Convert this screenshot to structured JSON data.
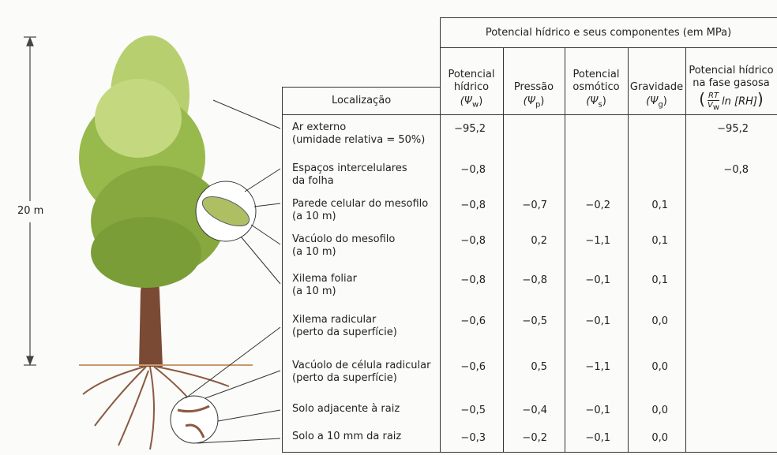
{
  "scale_label": "20 m",
  "table": {
    "group_header": "Potencial hídrico e seus componentes (em MPa)",
    "row_header": "Localização",
    "columns": [
      {
        "lines": [
          "Potencial",
          "hídrico"
        ],
        "open": "(Ψ",
        "subscript": "w",
        "close": ")"
      },
      {
        "lines": [
          "Pressão"
        ],
        "open": "(Ψ",
        "subscript": "p",
        "close": ")"
      },
      {
        "lines": [
          "Potencial",
          "osmótico"
        ],
        "open": "(Ψ",
        "subscript": "s",
        "close": ")"
      },
      {
        "lines": [
          "Gravidade"
        ],
        "open": "(Ψ",
        "subscript": "g",
        "close": ")"
      },
      {
        "lines": [
          "Potencial hídrico",
          "na fase gasosa"
        ],
        "formula": {
          "open": "(",
          "numerator": "RT",
          "denominator": "V",
          "denominator_subscript": "w",
          "rest": "ln [RH]",
          "close": ")"
        }
      }
    ],
    "rows": [
      {
        "label": [
          "Ar externo",
          "(umidade relativa = 50%)"
        ],
        "cells": [
          "−95,2",
          null,
          null,
          null,
          "−95,2"
        ]
      },
      {
        "label": [
          "Espaços intercelulares",
          "da folha"
        ],
        "cells": [
          "−0,8",
          null,
          null,
          null,
          "−0,8"
        ]
      },
      {
        "label": [
          "Parede celular do mesofilo",
          "(a 10 m)"
        ],
        "cells": [
          "−0,8",
          "−0,7",
          "−0,2",
          "0,1",
          null
        ]
      },
      {
        "label": [
          "Vacúolo do mesofilo",
          "(a 10 m)"
        ],
        "cells": [
          "−0,8",
          "0,2",
          "−1,1",
          "0,1",
          null
        ]
      },
      {
        "label": [
          "Xilema foliar",
          "(a 10 m)"
        ],
        "cells": [
          "−0,8",
          "−0,8",
          "−0,1",
          "0,1",
          null
        ]
      },
      {
        "label": [
          "Xilema radicular",
          "(perto da superfície)"
        ],
        "cells": [
          "−0,6",
          "−0,5",
          "−0,1",
          "0,0",
          null
        ]
      },
      {
        "label": [
          "Vacúolo de célula radicular",
          "(perto da superfície)"
        ],
        "cells": [
          "−0,6",
          "0,5",
          "−1,1",
          "0,0",
          null
        ]
      },
      {
        "label": [
          "Solo adjacente à raiz"
        ],
        "cells": [
          "−0,5",
          "−0,4",
          "−0,1",
          "0,0",
          null
        ]
      },
      {
        "label": [
          "Solo a 10 mm da raiz"
        ],
        "cells": [
          "−0,3",
          "−0,2",
          "−0,1",
          "0,0",
          null
        ]
      }
    ]
  }
}
